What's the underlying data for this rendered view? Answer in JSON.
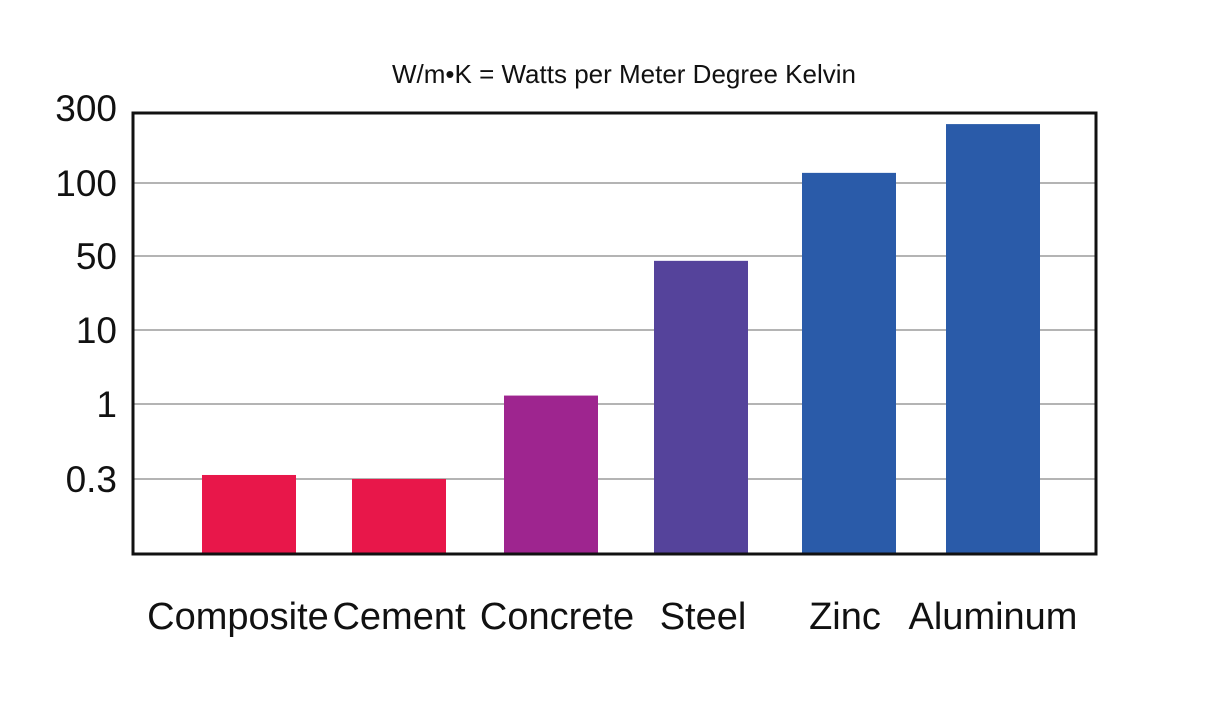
{
  "chart_data": {
    "type": "bar",
    "title": "W/m•K = Watts per Meter Degree Kelvin",
    "xlabel": "",
    "ylabel": "",
    "yscale": "log",
    "grid": true,
    "legend": "none",
    "yticks": [
      {
        "value": 0.3,
        "label": "0.3"
      },
      {
        "value": 1,
        "label": "1"
      },
      {
        "value": 10,
        "label": "10"
      },
      {
        "value": 50,
        "label": "50"
      },
      {
        "value": 100,
        "label": "100"
      },
      {
        "value": 300,
        "label": "300"
      }
    ],
    "categories": [
      "Composite",
      "Cement",
      "Concrete",
      "Steel",
      "Zinc",
      "Aluminum"
    ],
    "values": [
      0.32,
      0.3,
      1.3,
      45,
      116,
      237
    ],
    "colors": [
      "#e8174a",
      "#e8174a",
      "#9e258f",
      "#55439b",
      "#2a5ba9",
      "#2a5ba9"
    ]
  }
}
